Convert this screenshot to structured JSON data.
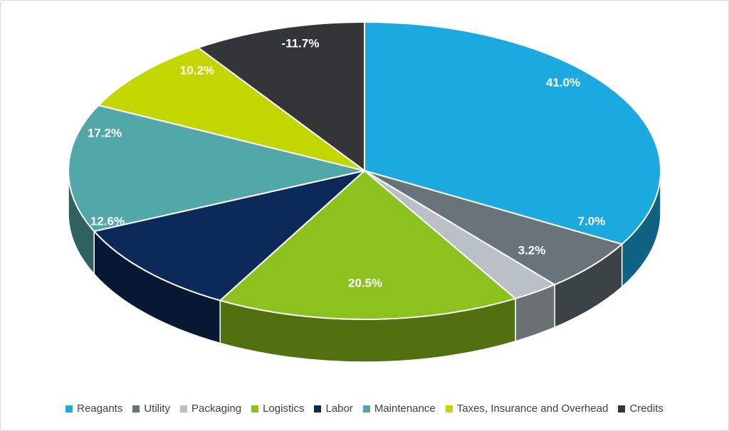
{
  "chart_data": {
    "type": "pie",
    "style": "3d-pie",
    "title": "",
    "legend_position": "bottom",
    "categories": [
      "Reagants",
      "Utility",
      "Packaging",
      "Logistics",
      "Labor",
      "Maintenance",
      "Taxes, Insurance and Overhead",
      "Credits"
    ],
    "values": [
      41.0,
      7.0,
      3.2,
      20.5,
      12.6,
      17.2,
      10.2,
      -11.7
    ],
    "labels": [
      "41.0%",
      "7.0%",
      "3.2%",
      "20.5%",
      "12.6%",
      "17.2%",
      "10.2%",
      "-11.7%"
    ],
    "colors": [
      "#1CA9E0",
      "#68747A",
      "#B9C1C6",
      "#8CC21E",
      "#0C2A59",
      "#52A7A8",
      "#C4D600",
      "#333639"
    ],
    "label_color": "#FFFFFF",
    "legend_text_color": "#404040",
    "slice_border_color": "#FFFFFF"
  }
}
